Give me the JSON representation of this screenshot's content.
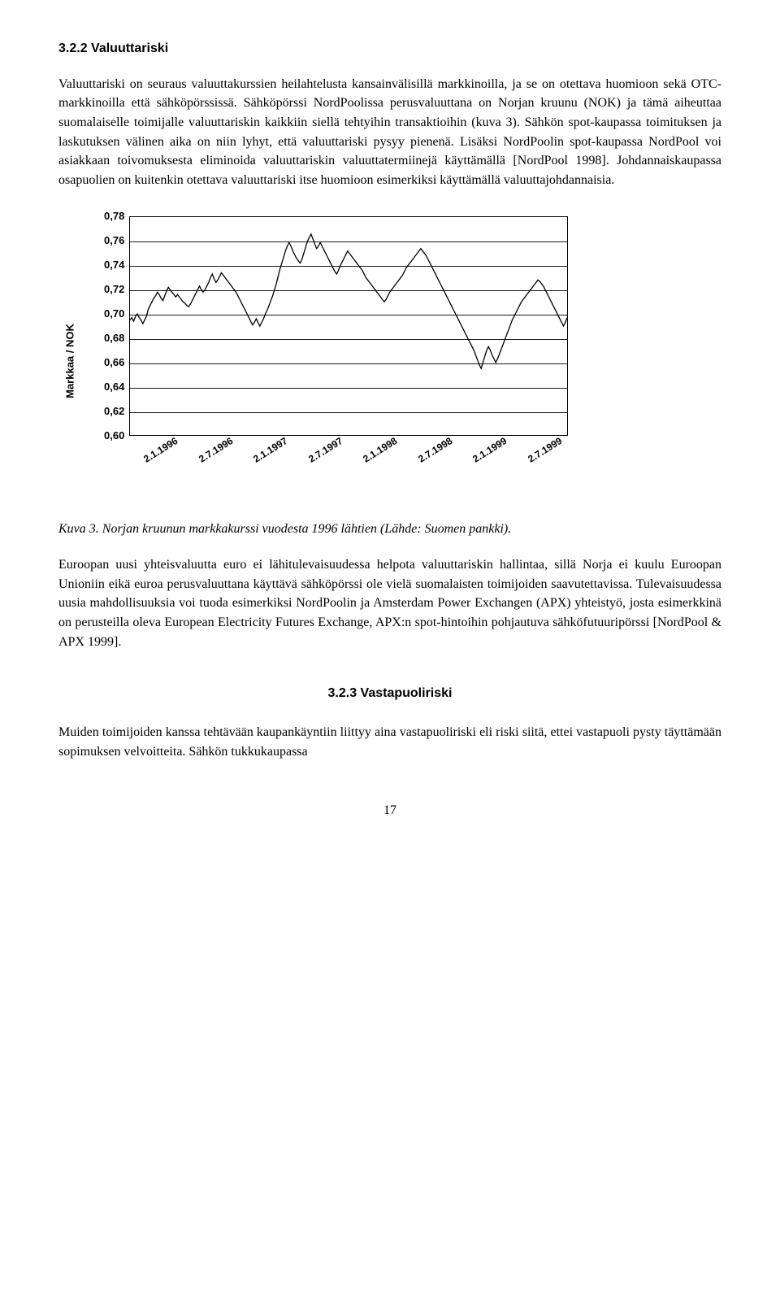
{
  "section_322": {
    "heading": "3.2.2 Valuuttariski",
    "p1": "Valuuttariski on seuraus valuuttakurssien heilahtelusta kansainvälisillä markkinoilla, ja se on otettava huomioon sekä OTC-markkinoilla että sähköpörssissä. Sähköpörssi NordPoolissa perusvaluuttana on Norjan kruunu (NOK) ja tämä aiheuttaa suomalaiselle toimijalle valuuttariskin kaikkiin siellä tehtyihin transaktioihin (kuva 3). Sähkön spot-kaupassa toimituksen ja laskutuksen välinen aika on niin lyhyt, että valuuttariski pysyy pienenä. Lisäksi NordPoolin spot-kaupassa NordPool voi asiakkaan toivomuksesta eliminoida valuuttariskin valuuttatermiinejä käyttämällä [NordPool 1998]. Johdannaiskaupassa osapuolien on kuitenkin otettava valuuttariski itse huomioon esimerkiksi käyttämällä valuuttajohdannaisia."
  },
  "figure3": {
    "type": "line",
    "ylabel": "Markkaa / NOK",
    "ylim": [
      0.6,
      0.78
    ],
    "ytick_step": 0.02,
    "yticks": [
      "0,78",
      "0,76",
      "0,74",
      "0,72",
      "0,70",
      "0,68",
      "0,66",
      "0,64",
      "0,62",
      "0,60"
    ],
    "xticks": [
      "2.1.1996",
      "2.7.1996",
      "2.1.1997",
      "2.7.1997",
      "2.1.1998",
      "2.7.1998",
      "2.1.1999",
      "2.7.1999"
    ],
    "caption": "Kuva  3. Norjan kruunun markkakurssi vuodesta 1996 lähtien (Lähde: Suomen pankki).",
    "line_color": "#000000",
    "line_width": 1.3,
    "grid_color": "#000000",
    "background_color": "#ffffff",
    "series": [
      0.695,
      0.697,
      0.694,
      0.698,
      0.7,
      0.697,
      0.695,
      0.692,
      0.695,
      0.698,
      0.704,
      0.707,
      0.71,
      0.713,
      0.715,
      0.718,
      0.716,
      0.713,
      0.711,
      0.715,
      0.719,
      0.722,
      0.72,
      0.718,
      0.716,
      0.714,
      0.716,
      0.714,
      0.712,
      0.71,
      0.709,
      0.707,
      0.706,
      0.708,
      0.711,
      0.714,
      0.717,
      0.72,
      0.723,
      0.72,
      0.718,
      0.72,
      0.723,
      0.726,
      0.73,
      0.733,
      0.729,
      0.726,
      0.728,
      0.731,
      0.734,
      0.732,
      0.73,
      0.728,
      0.726,
      0.724,
      0.722,
      0.72,
      0.718,
      0.715,
      0.712,
      0.709,
      0.706,
      0.703,
      0.7,
      0.697,
      0.694,
      0.691,
      0.693,
      0.696,
      0.693,
      0.69,
      0.693,
      0.696,
      0.7,
      0.703,
      0.707,
      0.711,
      0.715,
      0.72,
      0.725,
      0.731,
      0.737,
      0.742,
      0.747,
      0.752,
      0.756,
      0.759,
      0.756,
      0.752,
      0.749,
      0.746,
      0.744,
      0.742,
      0.745,
      0.75,
      0.755,
      0.76,
      0.763,
      0.766,
      0.762,
      0.758,
      0.754,
      0.756,
      0.759,
      0.756,
      0.753,
      0.75,
      0.747,
      0.744,
      0.741,
      0.738,
      0.735,
      0.733,
      0.736,
      0.74,
      0.743,
      0.746,
      0.749,
      0.752,
      0.75,
      0.748,
      0.746,
      0.744,
      0.742,
      0.74,
      0.738,
      0.736,
      0.733,
      0.73,
      0.728,
      0.726,
      0.724,
      0.722,
      0.72,
      0.718,
      0.716,
      0.714,
      0.712,
      0.71,
      0.712,
      0.715,
      0.718,
      0.72,
      0.722,
      0.724,
      0.726,
      0.728,
      0.73,
      0.732,
      0.735,
      0.738,
      0.74,
      0.742,
      0.744,
      0.746,
      0.748,
      0.75,
      0.752,
      0.754,
      0.752,
      0.75,
      0.748,
      0.745,
      0.742,
      0.739,
      0.736,
      0.733,
      0.73,
      0.727,
      0.724,
      0.721,
      0.718,
      0.715,
      0.712,
      0.709,
      0.706,
      0.703,
      0.7,
      0.697,
      0.694,
      0.691,
      0.688,
      0.685,
      0.682,
      0.679,
      0.676,
      0.673,
      0.67,
      0.666,
      0.662,
      0.658,
      0.655,
      0.66,
      0.665,
      0.67,
      0.673,
      0.67,
      0.666,
      0.663,
      0.66,
      0.663,
      0.667,
      0.671,
      0.675,
      0.679,
      0.683,
      0.687,
      0.691,
      0.695,
      0.698,
      0.701,
      0.704,
      0.707,
      0.71,
      0.712,
      0.714,
      0.716,
      0.718,
      0.72,
      0.722,
      0.724,
      0.726,
      0.728,
      0.727,
      0.725,
      0.723,
      0.72,
      0.717,
      0.714,
      0.711,
      0.708,
      0.705,
      0.702,
      0.699,
      0.696,
      0.693,
      0.69,
      0.693,
      0.697
    ]
  },
  "after_fig": {
    "p1": "Euroopan uusi yhteisvaluutta euro ei lähitulevaisuudessa helpota valuuttariskin hallintaa, sillä Norja ei kuulu Euroopan Unioniin eikä euroa perusvaluuttana käyttävä sähköpörssi ole vielä suomalaisten toimijoiden saavutettavissa. Tulevaisuudessa uusia mahdollisuuksia voi tuoda esimerkiksi NordPoolin ja Amsterdam Power Exchangen (APX) yhteistyö, josta esimerkkinä on perusteilla oleva European Electricity Futures Exchange, APX:n spot-hintoihin pohjautuva sähköfutuuripörssi [NordPool & APX 1999]."
  },
  "section_323": {
    "heading": "3.2.3 Vastapuoliriski",
    "p1": "Muiden toimijoiden kanssa tehtävään kaupankäyntiin liittyy aina vastapuoliriski eli riski siitä, ettei vastapuoli pysty täyttämään sopimuksen velvoitteita. Sähkön tukkukaupassa"
  },
  "page_number": "17"
}
